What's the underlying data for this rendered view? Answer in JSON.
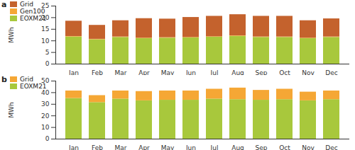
{
  "chart_data": [
    {
      "type": "bar",
      "title": "a",
      "y_label": "MWh",
      "stacked": true,
      "grid": false,
      "legend": "top-left",
      "categories": [
        "Jan",
        "Feb",
        "Mar",
        "Apr",
        "May",
        "Jun",
        "Jul",
        "Aug",
        "Sep",
        "Oct",
        "Nov",
        "Dec"
      ],
      "series": [
        {
          "name": "EOXM21",
          "color": "#a8c83c",
          "values": [
            11.7,
            10.5,
            11.5,
            11.0,
            11.2,
            11.3,
            11.6,
            12.0,
            11.5,
            11.5,
            11.0,
            11.5
          ]
        },
        {
          "name": "Gen100",
          "color": "#f5a735",
          "values": [
            0.2,
            0.2,
            0.2,
            0.2,
            0.2,
            0.2,
            0.2,
            0.2,
            0.2,
            0.2,
            0.2,
            0.2
          ]
        },
        {
          "name": "Grid",
          "color": "#c4622d",
          "values": [
            6.6,
            6.0,
            7.0,
            8.4,
            8.0,
            8.6,
            8.8,
            9.1,
            8.9,
            8.9,
            7.5,
            7.8
          ]
        }
      ],
      "ylim": [
        0,
        25
      ],
      "yticks": [
        0,
        5,
        10,
        15,
        20,
        25
      ]
    },
    {
      "type": "bar",
      "title": "b",
      "y_label": "MWh",
      "stacked": true,
      "grid": false,
      "legend": "top-left",
      "categories": [
        "Jan",
        "Feb",
        "Mar",
        "Apr",
        "May",
        "Jun",
        "Jul",
        "Aug",
        "Sep",
        "Oct",
        "Nov",
        "Dec"
      ],
      "series": [
        {
          "name": "EOXM21",
          "color": "#a8c83c",
          "values": [
            35,
            31.5,
            34.5,
            33,
            33.5,
            33.5,
            34.5,
            34,
            33.5,
            34,
            33,
            34
          ]
        },
        {
          "name": "Grid",
          "color": "#f5a735",
          "values": [
            6.5,
            6,
            7,
            8,
            8,
            8,
            8.5,
            10,
            8.5,
            9,
            7.5,
            7.5
          ]
        }
      ],
      "ylim": [
        0,
        50
      ],
      "yticks": [
        0,
        10,
        20,
        30,
        40,
        50
      ]
    }
  ]
}
